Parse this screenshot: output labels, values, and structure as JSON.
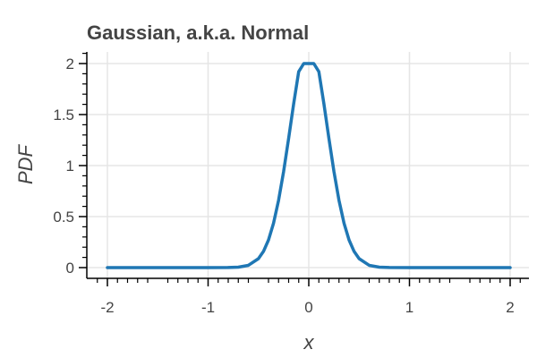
{
  "chart_data": {
    "type": "line",
    "title": "Gaussian, a.k.a. Normal",
    "xlabel": "x",
    "ylabel": "PDF",
    "xlim": [
      -2.2,
      2.2
    ],
    "ylim": [
      -0.1,
      2.1
    ],
    "grid": true,
    "legend": "none",
    "x_ticks": [
      "-2",
      "-1",
      "0",
      "1",
      "2"
    ],
    "x_tick_values": [
      -2,
      -1,
      0,
      1,
      2
    ],
    "y_ticks": [
      "0",
      "0.5",
      "1",
      "1.5",
      "2"
    ],
    "y_tick_values": [
      0,
      0.5,
      1,
      1.5,
      2
    ],
    "line_color": "#1f77b4",
    "series": [
      {
        "x": [
          -2.0,
          -1.0,
          -0.8,
          -0.7,
          -0.6,
          -0.5,
          -0.45,
          -0.4,
          -0.35,
          -0.3,
          -0.25,
          -0.2,
          -0.15,
          -0.1,
          -0.05,
          0.0,
          0.05,
          0.1,
          0.15,
          0.2,
          0.25,
          0.3,
          0.35,
          0.4,
          0.45,
          0.5,
          0.6,
          0.7,
          0.8,
          1.0,
          2.0
        ],
        "y": [
          0.0,
          0.0,
          0.0008,
          0.0045,
          0.0222,
          0.0876,
          0.1586,
          0.2707,
          0.4353,
          0.6594,
          0.9414,
          1.2668,
          1.6068,
          1.9207,
          2.1626,
          2.2,
          2.1626,
          1.9207,
          1.6068,
          1.2668,
          0.9414,
          0.6594,
          0.4353,
          0.2707,
          0.1586,
          0.0876,
          0.0222,
          0.0045,
          0.0008,
          0.0,
          0.0
        ]
      }
    ]
  }
}
